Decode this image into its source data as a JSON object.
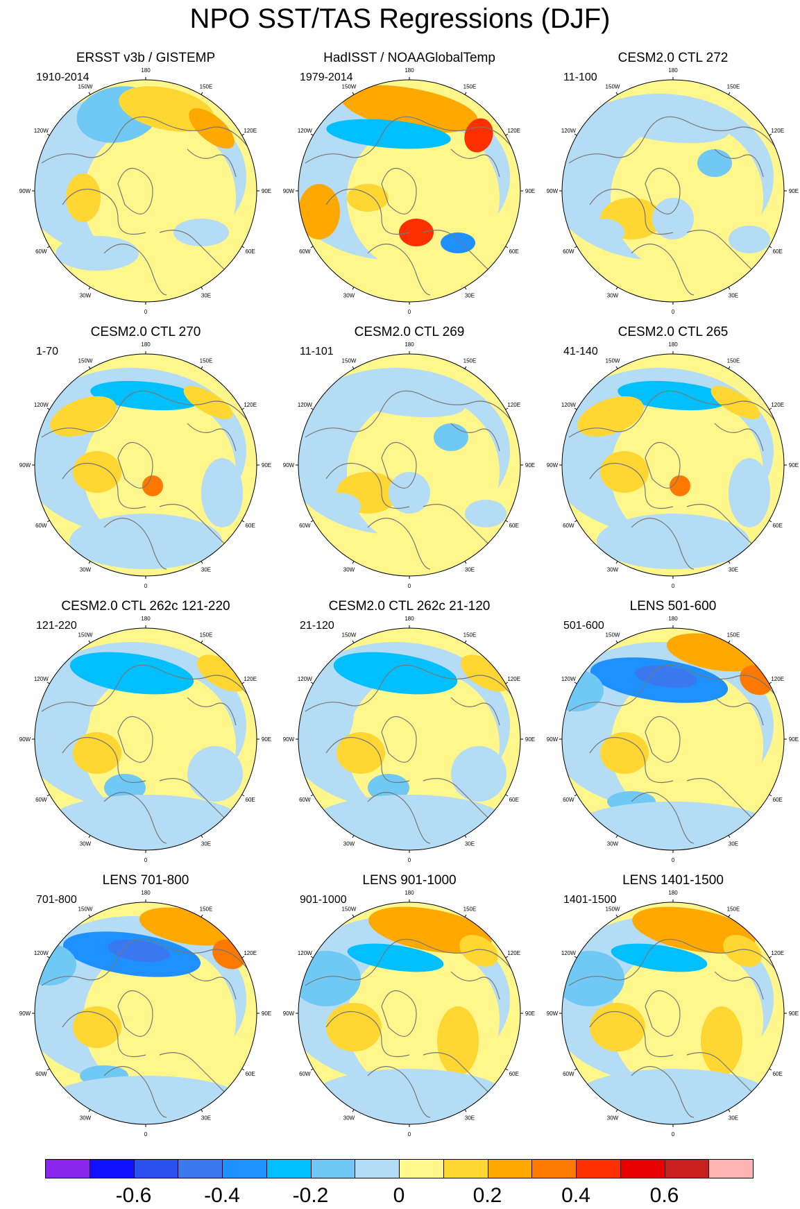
{
  "title": "NPO SST/TAS Regressions (DJF)",
  "lon_labels": [
    "180",
    "150E",
    "120E",
    "90E",
    "60E",
    "30E",
    "0",
    "30W",
    "60W",
    "90W",
    "120W",
    "150W"
  ],
  "panels": [
    {
      "title": "ERSST v3b / GISTEMP",
      "period": "1910-2014",
      "pattern": "obs1"
    },
    {
      "title": "HadISST / NOAAGlobalTemp",
      "period": "1979-2014",
      "pattern": "obs2"
    },
    {
      "title": "CESM2.0 CTL 272",
      "period": "11-100",
      "pattern": "weak"
    },
    {
      "title": "CESM2.0 CTL 270",
      "period": "1-70",
      "pattern": "mixed"
    },
    {
      "title": "CESM2.0 CTL 269",
      "period": "11-101",
      "pattern": "weak"
    },
    {
      "title": "CESM2.0 CTL 265",
      "period": "41-140",
      "pattern": "mixed"
    },
    {
      "title": "CESM2.0 CTL 262c 121-220",
      "period": "121-220",
      "pattern": "cold"
    },
    {
      "title": "CESM2.0 CTL 262c 21-120",
      "period": "21-120",
      "pattern": "cold"
    },
    {
      "title": "LENS 501-600",
      "period": "501-600",
      "pattern": "strong"
    },
    {
      "title": "LENS 701-800",
      "period": "701-800",
      "pattern": "strong"
    },
    {
      "title": "LENS 901-1000",
      "period": "901-1000",
      "pattern": "warm"
    },
    {
      "title": "LENS 1401-1500",
      "period": "1401-1500",
      "pattern": "warm"
    }
  ],
  "colorbar": {
    "colors": [
      "#8a26ee",
      "#1010ff",
      "#2a50f0",
      "#3a78f0",
      "#1e90ff",
      "#00bfff",
      "#70c8f4",
      "#b4dcf4",
      "#fff68c",
      "#ffd632",
      "#ffa800",
      "#ff7800",
      "#ff3000",
      "#e60000",
      "#c81e1e",
      "#ffb4b4"
    ],
    "labels": [
      "-0.6",
      "-0.4",
      "-0.2",
      "0",
      "0.2",
      "0.4",
      "0.6"
    ]
  }
}
